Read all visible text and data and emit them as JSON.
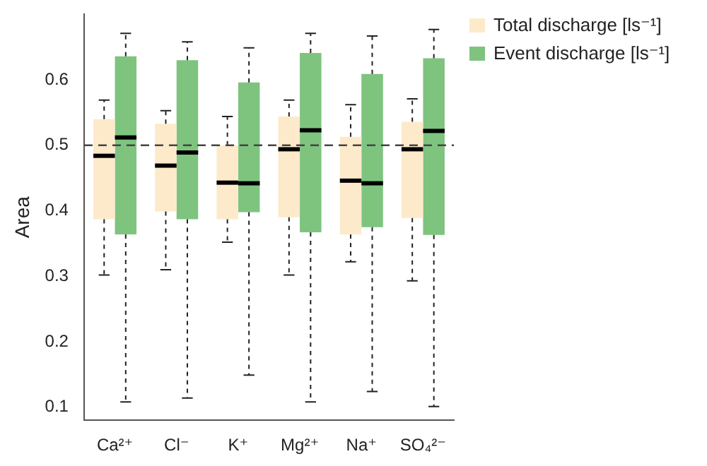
{
  "chart_data": {
    "type": "box",
    "ylabel": "Area",
    "categories": [
      "Ca²⁺",
      "Cl⁻",
      "K⁺",
      "Mg²⁺",
      "Na⁺",
      "SO₄²⁻"
    ],
    "ylim": [
      0.08,
      0.7
    ],
    "yticks": [
      0.1,
      0.2,
      0.3,
      0.4,
      0.5,
      0.6
    ],
    "grid": false,
    "legend": "top right",
    "ref_lines": [
      {
        "axis": "y",
        "value": 0.5,
        "color": "#444444",
        "line_style": "dashed"
      }
    ],
    "series": [
      {
        "name": "Total discharge [ls⁻¹]",
        "color": "#fdeacb",
        "boxes": [
          {
            "low": 0.302,
            "q1": 0.387,
            "median": 0.484,
            "q3": 0.54,
            "high": 0.569
          },
          {
            "low": 0.31,
            "q1": 0.399,
            "median": 0.469,
            "q3": 0.533,
            "high": 0.553
          },
          {
            "low": 0.352,
            "q1": 0.387,
            "median": 0.443,
            "q3": 0.5,
            "high": 0.544
          },
          {
            "low": 0.302,
            "q1": 0.39,
            "median": 0.494,
            "q3": 0.544,
            "high": 0.569
          },
          {
            "low": 0.322,
            "q1": 0.364,
            "median": 0.446,
            "q3": 0.513,
            "high": 0.562
          },
          {
            "low": 0.293,
            "q1": 0.389,
            "median": 0.494,
            "q3": 0.536,
            "high": 0.571
          }
        ]
      },
      {
        "name": "Event discharge [ls⁻¹]",
        "color": "#7ec47f",
        "boxes": [
          {
            "low": 0.108,
            "q1": 0.364,
            "median": 0.512,
            "q3": 0.636,
            "high": 0.671
          },
          {
            "low": 0.114,
            "q1": 0.387,
            "median": 0.489,
            "q3": 0.63,
            "high": 0.658
          },
          {
            "low": 0.149,
            "q1": 0.398,
            "median": 0.442,
            "q3": 0.596,
            "high": 0.649
          },
          {
            "low": 0.108,
            "q1": 0.367,
            "median": 0.523,
            "q3": 0.641,
            "high": 0.671
          },
          {
            "low": 0.124,
            "q1": 0.375,
            "median": 0.442,
            "q3": 0.609,
            "high": 0.667
          },
          {
            "low": 0.101,
            "q1": 0.363,
            "median": 0.522,
            "q3": 0.633,
            "high": 0.677
          }
        ]
      }
    ]
  }
}
